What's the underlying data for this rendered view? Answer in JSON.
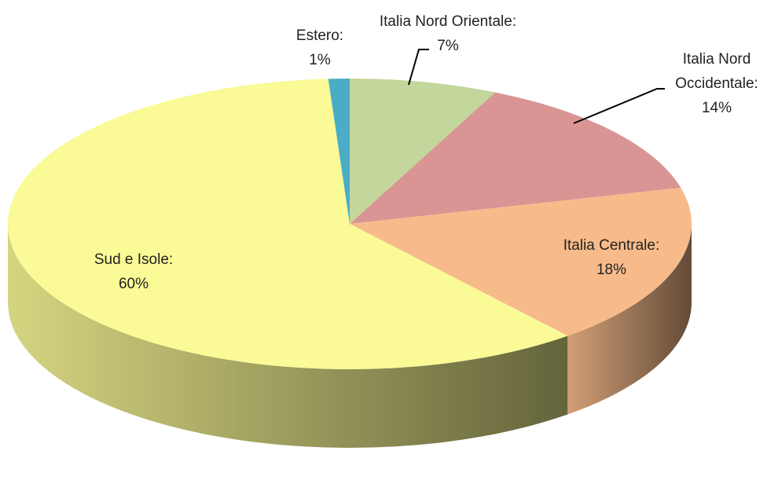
{
  "chart_data": {
    "type": "pie3d",
    "categories": [
      "Italia Nord Orientale:",
      "Italia Nord Occidentale:",
      "Italia Centrale:",
      "Sud e Isole:",
      "Estero:"
    ],
    "values": [
      7,
      14,
      18,
      60,
      1
    ],
    "value_labels": [
      "7%",
      "14%",
      "18%",
      "60%",
      "1%"
    ],
    "colors": [
      "#c3d69b",
      "#d99594",
      "#f7bb8b",
      "#fafa96",
      "#4bacc6"
    ]
  }
}
